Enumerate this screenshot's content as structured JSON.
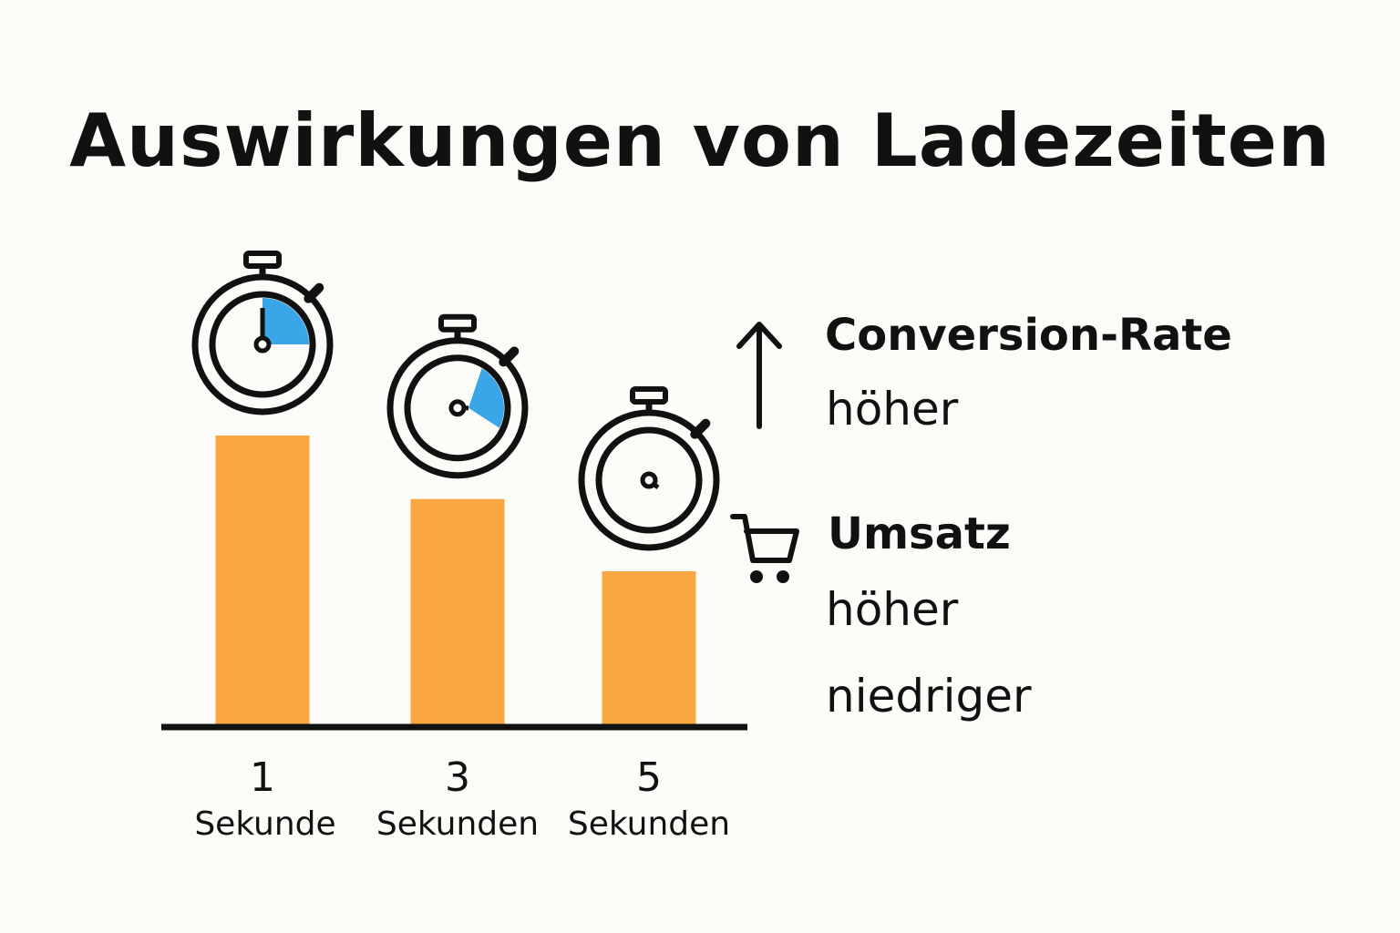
{
  "title": "Auswirkungen von Ladezeiten",
  "chart_data": {
    "type": "bar",
    "categories": [
      {
        "value": "1",
        "unit": "Sekunde"
      },
      {
        "value": "3",
        "unit": "Sekunden"
      },
      {
        "value": "5",
        "unit": "Sekunden"
      }
    ],
    "values": [
      100,
      78,
      53
    ],
    "ylim": [
      0,
      100
    ],
    "colors": {
      "bar": "#f8a642",
      "accent": "#3aa6e8",
      "axis": "#111111"
    }
  },
  "legend": {
    "conversion": {
      "icon": "arrow-up-icon",
      "label": "Conversion-Rate",
      "value": "höher"
    },
    "umsatz": {
      "icon": "shopping-cart-icon",
      "label": "Umsatz",
      "value": "höher"
    },
    "extra_value": "niedriger"
  }
}
